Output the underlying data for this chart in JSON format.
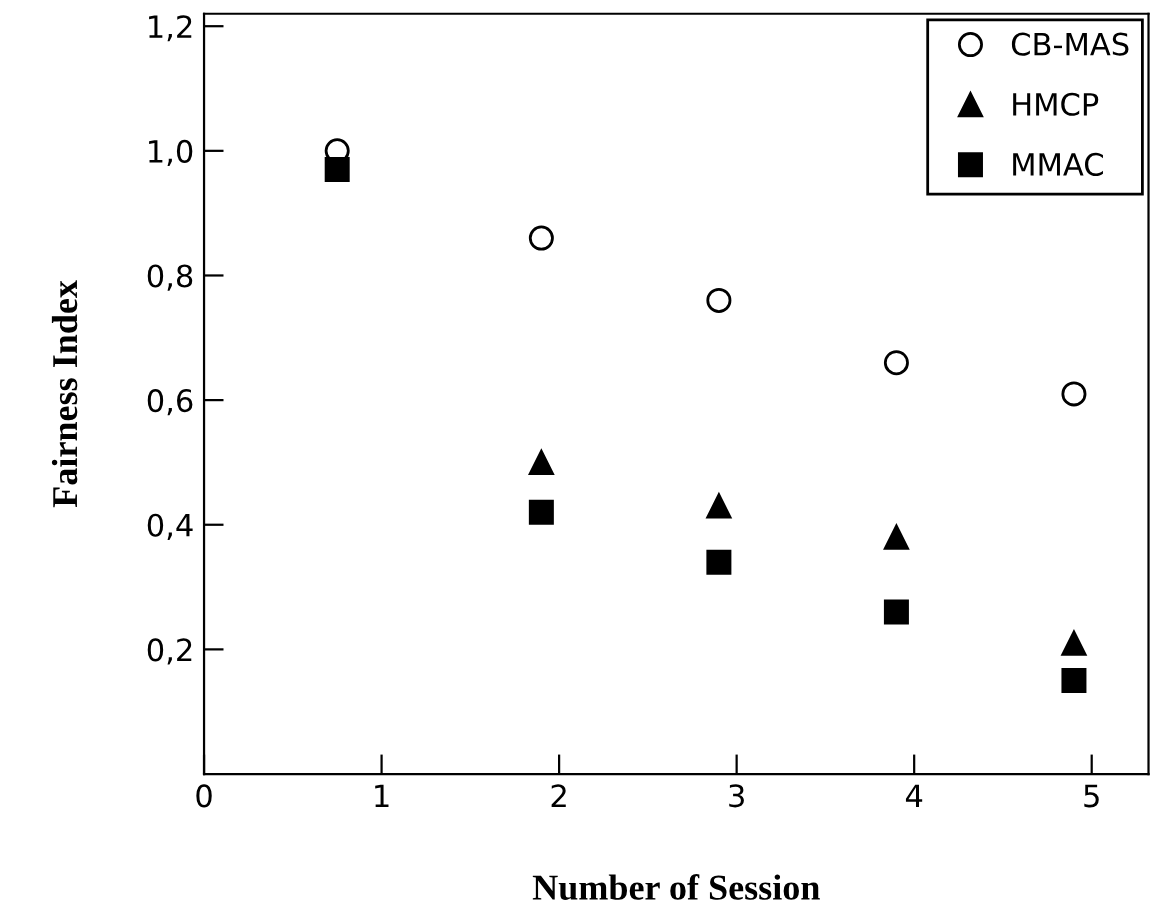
{
  "chart_data": {
    "type": "scatter",
    "xlabel": "Number of Session",
    "ylabel": "Fairness Index",
    "xlim": [
      0,
      5.32
    ],
    "ylim": [
      0,
      1.22
    ],
    "xticks": [
      0,
      1,
      2,
      3,
      4,
      5
    ],
    "yticks": [
      {
        "value": 0.2,
        "label": "0,2"
      },
      {
        "value": 0.4,
        "label": "0,4"
      },
      {
        "value": 0.6,
        "label": "0,6"
      },
      {
        "value": 0.8,
        "label": "0,8"
      },
      {
        "value": 1.0,
        "label": "1,0"
      },
      {
        "value": 1.2,
        "label": "1,2"
      }
    ],
    "x": [
      0.75,
      1.9,
      2.9,
      3.9,
      4.9
    ],
    "series": [
      {
        "name": "CB-MAS",
        "color": "#000000",
        "marker": "circle",
        "values": [
          1.0,
          0.86,
          0.76,
          0.66,
          0.61
        ]
      },
      {
        "name": "HMCP",
        "color": "#000000",
        "marker": "triangle",
        "values": [
          null,
          0.5,
          0.43,
          0.38,
          0.21
        ]
      },
      {
        "name": "MMAC",
        "color": "#000000",
        "marker": "square",
        "values": [
          0.97,
          0.42,
          0.34,
          0.26,
          0.15
        ]
      }
    ],
    "grid": false,
    "legend": "top right"
  }
}
